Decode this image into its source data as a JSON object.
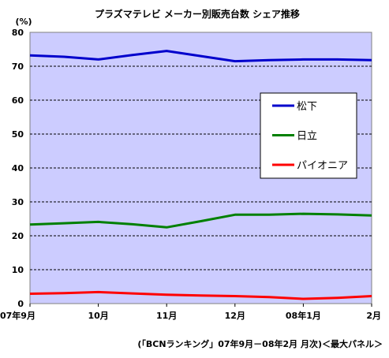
{
  "chart_data": {
    "type": "line",
    "title": "プラズマテレビ メーカー別販売台数 シェア推移",
    "unit_label": "(%)",
    "categories": [
      "07年9月",
      "10月",
      "11月",
      "12月",
      "08年1月",
      "2月"
    ],
    "ylim": [
      0,
      80
    ],
    "yticks": [
      0,
      10,
      20,
      30,
      40,
      50,
      60,
      70,
      80
    ],
    "grid": true,
    "legend_position": "right",
    "x": [
      0,
      0.5,
      1,
      1.5,
      2,
      2.5,
      3,
      3.5,
      4,
      4.5,
      5
    ],
    "series": [
      {
        "name": "松下",
        "color": "#0000cc",
        "values": [
          73.2,
          72.8,
          72.0,
          73.3,
          74.5,
          73.0,
          71.5,
          71.8,
          72.0,
          72.0,
          71.8
        ]
      },
      {
        "name": "日立",
        "color": "#008000",
        "values": [
          23.3,
          23.7,
          24.1,
          23.4,
          22.5,
          24.3,
          26.2,
          26.2,
          26.5,
          26.3,
          26.0
        ]
      },
      {
        "name": "パイオニア",
        "color": "#ff0000",
        "values": [
          2.9,
          3.1,
          3.4,
          3.0,
          2.6,
          2.4,
          2.2,
          1.9,
          1.4,
          1.7,
          2.2
        ]
      }
    ],
    "plot_background": "#ccccff",
    "source_note": "(「BCNランキング」07年9月－08年2月 月次)＜最大パネル＞"
  }
}
